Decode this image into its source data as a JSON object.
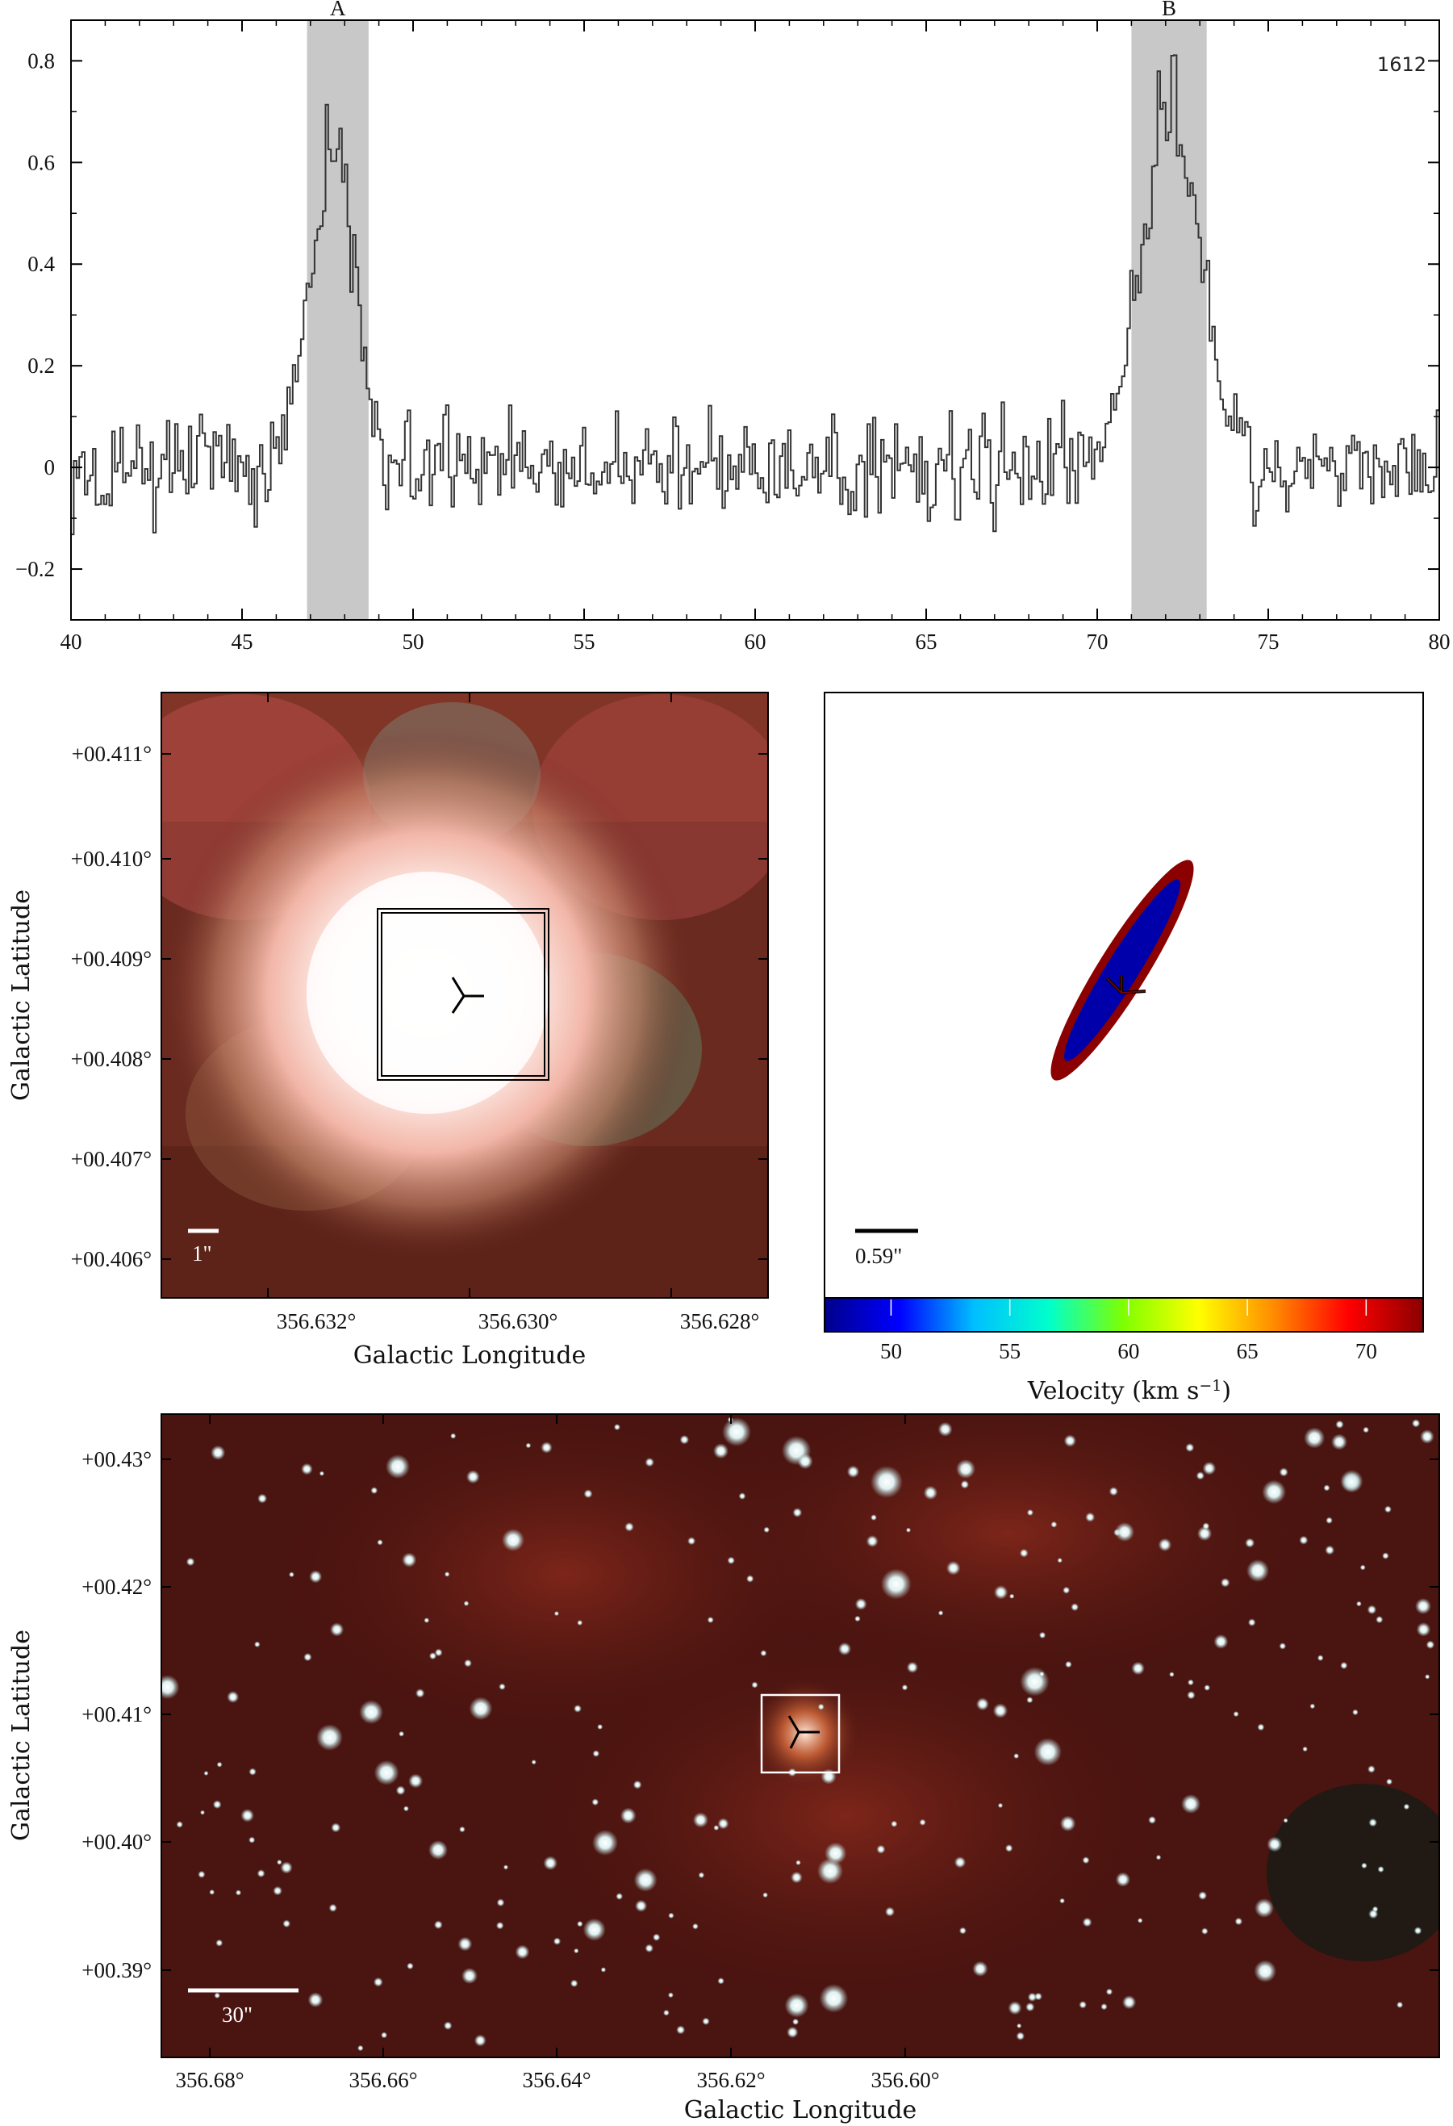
{
  "chart_data": [
    {
      "type": "line",
      "step": true,
      "xlim": [
        40,
        80
      ],
      "ylim": [
        -0.3,
        0.88
      ],
      "x_ticks": [
        "40",
        "45",
        "50",
        "55",
        "60",
        "65",
        "70",
        "75",
        "80"
      ],
      "y_ticks": [
        "-0.2",
        "0",
        "0.2",
        "0.4",
        "0.6",
        "0.8"
      ],
      "annotation": "1612",
      "regions": [
        {
          "label": "A",
          "x0": 46.9,
          "x1": 48.7
        },
        {
          "label": "B",
          "x0": 71.0,
          "x1": 73.2
        }
      ],
      "peaks": [
        {
          "center": 47.6,
          "width": 0.65,
          "height": 0.62
        },
        {
          "center": 72.1,
          "width": 0.85,
          "height": 0.72
        }
      ],
      "noise_level": 0.07,
      "grid": false,
      "line_color": "#333333",
      "region_color": "#c8c8c8"
    },
    {
      "type": "image",
      "panel": "zoom",
      "xlabel": "Galactic Longitude",
      "ylabel": "Galactic Latitude",
      "x_ticks": [
        "356.632°",
        "356.630°",
        "356.628°"
      ],
      "y_ticks": [
        "+00.411°",
        "+00.410°",
        "+00.409°",
        "+00.408°",
        "+00.407°",
        "+00.406°"
      ],
      "scale_bar": "1\""
    },
    {
      "type": "scatter",
      "panel": "velocity-map",
      "scale_bar": "0.59\"",
      "colorbar": {
        "label": "Velocity (km s−1)",
        "label_main": "Velocity (km s",
        "label_exp": "−1",
        "label_close": ")",
        "ticks": [
          "50",
          "55",
          "60",
          "65",
          "70"
        ],
        "range": [
          47.2,
          72.4
        ],
        "colors": [
          "#00008b",
          "#0000ff",
          "#00bfff",
          "#00ffcc",
          "#7fff00",
          "#ffff00",
          "#ff8c00",
          "#ff0000",
          "#8b0000"
        ]
      },
      "ellipses": [
        {
          "component": "outer",
          "color": "#8b0000"
        },
        {
          "component": "inner",
          "color": "#0000aa"
        }
      ]
    },
    {
      "type": "image",
      "panel": "field",
      "xlabel": "Galactic Longitude",
      "ylabel": "Galactic Latitude",
      "x_ticks": [
        "356.68°",
        "356.66°",
        "356.64°",
        "356.62°",
        "356.60°"
      ],
      "y_ticks": [
        "+00.43°",
        "+00.42°",
        "+00.41°",
        "+00.40°",
        "+00.39°"
      ],
      "scale_bar": "30\""
    }
  ],
  "colors": {
    "zoom_bg": "#6b2a1f",
    "field_bg": "#4a1410",
    "star": "#e8f4f4",
    "frame": "#000000"
  }
}
